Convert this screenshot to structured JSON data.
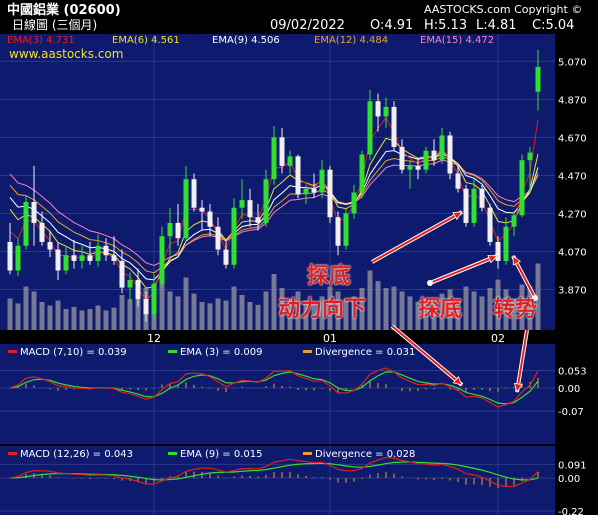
{
  "header": {
    "stock_name": "中國鋁業 (02600)",
    "copyright": "AASTOCKS.com Copyright ©",
    "chart_period": "日線圖 (三個月)",
    "date": "09/02/2022",
    "open": "O:4.91",
    "high": "H:5.13",
    "low": "L:4.81",
    "close": "C:5.04"
  },
  "legend": {
    "ema3": "EMA(3) 4.731",
    "ema6": "EMA(6) 4.561",
    "ema9": "EMA(9) 4.506",
    "ema12": "EMA(12) 4.484",
    "ema15": "EMA(15) 4.472",
    "website": "www.aastocks.com"
  },
  "colors": {
    "ema3": "#e02020",
    "ema6": "#f0e020",
    "ema9": "#ffffff",
    "ema12": "#f0a020",
    "ema15": "#ff80c0",
    "up": "#30e030",
    "down": "#f0f0f0",
    "volume": "#8a8a9a",
    "macd": "#e02020",
    "signal": "#30e030",
    "divergence": "#f0a020",
    "annotation": "#e02020"
  },
  "chart_data": [
    {
      "type": "candlestick",
      "ylim": [
        3.72,
        5.14
      ],
      "yticks": [
        "5.070",
        "4.870",
        "4.670",
        "4.470",
        "4.270",
        "4.070",
        "3.870"
      ],
      "xticks": [
        "12",
        "01",
        "02"
      ],
      "candles": [
        [
          4.12,
          4.22,
          3.95,
          3.97
        ],
        [
          3.97,
          4.14,
          3.94,
          4.1
        ],
        [
          4.1,
          4.36,
          4.08,
          4.33
        ],
        [
          4.33,
          4.52,
          4.1,
          4.22
        ],
        [
          4.22,
          4.28,
          4.1,
          4.12
        ],
        [
          4.12,
          4.18,
          4.04,
          4.08
        ],
        [
          4.08,
          4.12,
          3.92,
          3.97
        ],
        [
          3.97,
          4.1,
          3.95,
          4.05
        ],
        [
          4.05,
          4.13,
          3.98,
          4.02
        ],
        [
          4.02,
          4.1,
          3.98,
          4.05
        ],
        [
          4.05,
          4.12,
          4.0,
          4.02
        ],
        [
          4.02,
          4.16,
          3.99,
          4.1
        ],
        [
          4.1,
          4.14,
          4.02,
          4.05
        ],
        [
          4.05,
          4.15,
          4.0,
          4.02
        ],
        [
          4.02,
          4.08,
          3.85,
          3.88
        ],
        [
          3.88,
          3.96,
          3.8,
          3.92
        ],
        [
          3.92,
          3.98,
          3.78,
          3.82
        ],
        [
          3.82,
          3.86,
          3.7,
          3.74
        ],
        [
          3.74,
          3.95,
          3.7,
          3.9
        ],
        [
          3.9,
          4.2,
          3.88,
          4.15
        ],
        [
          4.15,
          4.3,
          4.05,
          4.22
        ],
        [
          4.22,
          4.32,
          4.1,
          4.14
        ],
        [
          4.14,
          4.52,
          4.12,
          4.45
        ],
        [
          4.45,
          4.48,
          4.28,
          4.3
        ],
        [
          4.3,
          4.34,
          4.18,
          4.28
        ],
        [
          4.28,
          4.32,
          4.15,
          4.2
        ],
        [
          4.2,
          4.25,
          4.05,
          4.08
        ],
        [
          4.08,
          4.13,
          3.98,
          4.0
        ],
        [
          4.0,
          4.35,
          3.98,
          4.3
        ],
        [
          4.3,
          4.45,
          4.24,
          4.34
        ],
        [
          4.34,
          4.4,
          4.2,
          4.25
        ],
        [
          4.25,
          4.32,
          4.18,
          4.22
        ],
        [
          4.22,
          4.5,
          4.2,
          4.45
        ],
        [
          4.45,
          4.73,
          4.42,
          4.67
        ],
        [
          4.67,
          4.72,
          4.48,
          4.52
        ],
        [
          4.52,
          4.6,
          4.48,
          4.57
        ],
        [
          4.57,
          4.58,
          4.35,
          4.37
        ],
        [
          4.37,
          4.42,
          4.32,
          4.4
        ],
        [
          4.4,
          4.48,
          4.35,
          4.38
        ],
        [
          4.38,
          4.55,
          4.35,
          4.5
        ],
        [
          4.5,
          4.52,
          4.22,
          4.25
        ],
        [
          4.25,
          4.28,
          4.05,
          4.1
        ],
        [
          4.1,
          4.3,
          4.08,
          4.27
        ],
        [
          4.27,
          4.42,
          4.24,
          4.38
        ],
        [
          4.38,
          4.6,
          4.35,
          4.58
        ],
        [
          4.58,
          4.92,
          4.55,
          4.86
        ],
        [
          4.86,
          4.9,
          4.7,
          4.78
        ],
        [
          4.78,
          4.88,
          4.72,
          4.83
        ],
        [
          4.83,
          4.86,
          4.6,
          4.62
        ],
        [
          4.62,
          4.66,
          4.48,
          4.5
        ],
        [
          4.5,
          4.55,
          4.4,
          4.52
        ],
        [
          4.52,
          4.56,
          4.45,
          4.5
        ],
        [
          4.5,
          4.62,
          4.48,
          4.6
        ],
        [
          4.6,
          4.66,
          4.52,
          4.55
        ],
        [
          4.55,
          4.72,
          4.53,
          4.68
        ],
        [
          4.68,
          4.7,
          4.45,
          4.48
        ],
        [
          4.48,
          4.52,
          4.38,
          4.4
        ],
        [
          4.4,
          4.42,
          4.2,
          4.22
        ],
        [
          4.22,
          4.45,
          4.2,
          4.4
        ],
        [
          4.4,
          4.42,
          4.28,
          4.3
        ],
        [
          4.3,
          4.32,
          4.1,
          4.12
        ],
        [
          4.12,
          4.15,
          3.98,
          4.02
        ],
        [
          4.02,
          4.25,
          4.0,
          4.2
        ],
        [
          4.2,
          4.28,
          4.15,
          4.26
        ],
        [
          4.26,
          4.58,
          4.25,
          4.55
        ],
        [
          4.55,
          4.62,
          4.38,
          4.59
        ],
        [
          4.91,
          5.13,
          4.81,
          5.04
        ]
      ],
      "volume": [
        0.45,
        0.38,
        0.62,
        0.55,
        0.4,
        0.35,
        0.42,
        0.3,
        0.33,
        0.28,
        0.3,
        0.35,
        0.28,
        0.32,
        0.5,
        0.44,
        0.48,
        0.6,
        0.58,
        0.72,
        0.55,
        0.48,
        0.75,
        0.52,
        0.4,
        0.38,
        0.45,
        0.42,
        0.62,
        0.5,
        0.4,
        0.36,
        0.55,
        0.8,
        0.6,
        0.45,
        0.55,
        0.42,
        0.38,
        0.48,
        0.62,
        0.55,
        0.45,
        0.48,
        0.6,
        0.85,
        0.7,
        0.6,
        0.62,
        0.55,
        0.48,
        0.4,
        0.45,
        0.42,
        0.52,
        0.58,
        0.45,
        0.62,
        0.55,
        0.48,
        0.6,
        0.72,
        0.58,
        0.45,
        0.65,
        0.62,
        0.95
      ]
    },
    {
      "type": "line",
      "title": "MACD (7,10)",
      "legend": [
        "MACD (7,10) = 0.039",
        "EMA (3) = 0.009",
        "Divergence = 0.031"
      ],
      "ylim": [
        -0.13,
        0.09
      ],
      "yticks": [
        "0.053",
        "0.00",
        "-0.07"
      ]
    },
    {
      "type": "line",
      "title": "MACD (12,26)",
      "legend": [
        "MACD (12,26) = 0.043",
        "EMA (9) = 0.015",
        "Divergence = 0.028"
      ],
      "ylim": [
        -0.25,
        0.13
      ],
      "yticks": [
        "0.091",
        "0.00",
        "-0.22"
      ]
    }
  ],
  "annotations": {
    "bottom_fishing": "探底",
    "momentum_down": "动力向下",
    "bottom_fishing_2": "探底",
    "reversal": "转势"
  }
}
